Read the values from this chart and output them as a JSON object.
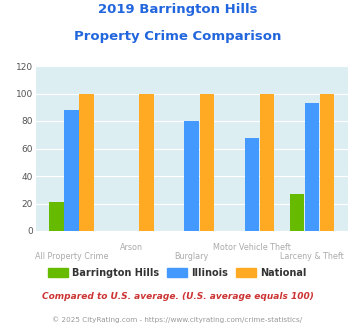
{
  "title_line1": "2019 Barrington Hills",
  "title_line2": "Property Crime Comparison",
  "categories": [
    "All Property Crime",
    "Arson",
    "Burglary",
    "Motor Vehicle Theft",
    "Larceny & Theft"
  ],
  "cat_row1": [
    "",
    "Arson",
    "",
    "Motor Vehicle Theft",
    ""
  ],
  "cat_row2": [
    "All Property Crime",
    "",
    "Burglary",
    "",
    "Larceny & Theft"
  ],
  "barrington_hills": [
    21,
    0,
    0,
    0,
    27
  ],
  "illinois": [
    88,
    0,
    80,
    68,
    93
  ],
  "national": [
    100,
    100,
    100,
    100,
    100
  ],
  "color_bh": "#66bb00",
  "color_il": "#4499ff",
  "color_nat": "#ffaa22",
  "ylim": [
    0,
    120
  ],
  "yticks": [
    0,
    20,
    40,
    60,
    80,
    100,
    120
  ],
  "legend_labels": [
    "Barrington Hills",
    "Illinois",
    "National"
  ],
  "footnote1": "Compared to U.S. average. (U.S. average equals 100)",
  "footnote2": "© 2025 CityRating.com - https://www.cityrating.com/crime-statistics/",
  "title_color": "#2266dd",
  "footnote1_color": "#cc3333",
  "footnote2_color": "#999999",
  "bg_color": "#ddeef2",
  "xlabel_color": "#aaaaaa"
}
